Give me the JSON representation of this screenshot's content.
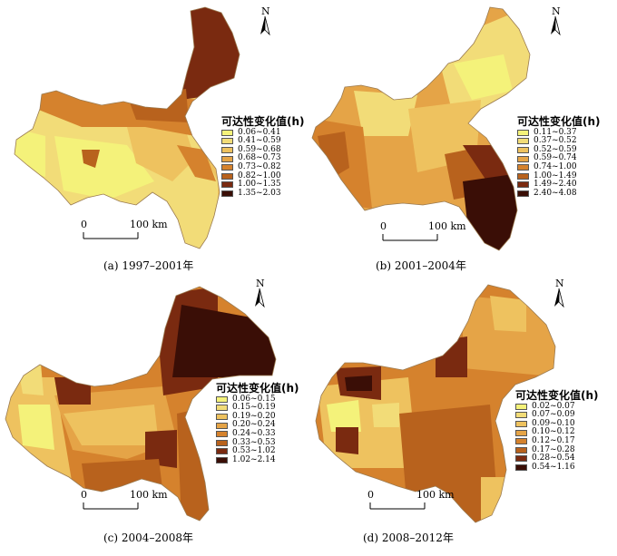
{
  "legend_title": "可达性变化值(h)",
  "panels": [
    {
      "caption": "(a) 1997–2001年",
      "north": "N",
      "scale": {
        "zero": "0",
        "end": "100 km"
      },
      "classes": [
        "0.06~0.41",
        "0.41~0.59",
        "0.59~0.68",
        "0.68~0.73",
        "0.73~0.82",
        "0.82~1.00",
        "1.00~1.35",
        "1.35~2.03"
      ],
      "colors": [
        "#f4f27a",
        "#f2dc78",
        "#eec25f",
        "#e5a447",
        "#d5822d",
        "#b8621d",
        "#7a2a10",
        "#3a0e06"
      ]
    },
    {
      "caption": "(b) 2001–2004年",
      "north": "N",
      "scale": {
        "zero": "0",
        "end": "100 km"
      },
      "classes": [
        "0.11~0.37",
        "0.37~0.52",
        "0.52~0.59",
        "0.59~0.74",
        "0.74~1.00",
        "1.00~1.49",
        "1.49~2.40",
        "2.40~4.08"
      ],
      "colors": [
        "#f4f27a",
        "#f2dc78",
        "#eec25f",
        "#e5a447",
        "#d5822d",
        "#b8621d",
        "#7a2a10",
        "#3a0e06"
      ]
    },
    {
      "caption": "(c) 2004–2008年",
      "north": "N",
      "scale": {
        "zero": "0",
        "end": "100 km"
      },
      "classes": [
        "0.06~0.15",
        "0.15~0.19",
        "0.19~0.20",
        "0.20~0.24",
        "0.24~0.33",
        "0.33~0.53",
        "0.53~1.02",
        "1.02~2.14"
      ],
      "colors": [
        "#f4f27a",
        "#f2dc78",
        "#eec25f",
        "#e5a447",
        "#d5822d",
        "#b8621d",
        "#7a2a10",
        "#3a0e06"
      ]
    },
    {
      "caption": "(d) 2008–2012年",
      "north": "N",
      "scale": {
        "zero": "0",
        "end": "100 km"
      },
      "classes": [
        "0.02~0.07",
        "0.07~0.09",
        "0.09~0.10",
        "0.10~0.12",
        "0.12~0.17",
        "0.17~0.28",
        "0.28~0.54",
        "0.54~1.16"
      ],
      "colors": [
        "#f4f27a",
        "#f2dc78",
        "#eec25f",
        "#e5a447",
        "#d5822d",
        "#b8621d",
        "#7a2a10",
        "#3a0e06"
      ]
    }
  ]
}
